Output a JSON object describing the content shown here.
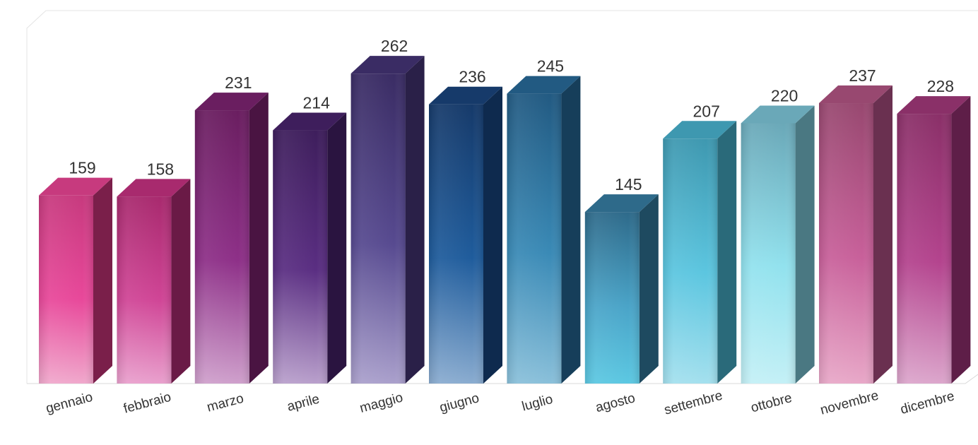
{
  "chart_data": {
    "type": "bar",
    "style": "3d",
    "categories": [
      "gennaio",
      "febbraio",
      "marzo",
      "aprile",
      "maggio",
      "giugno",
      "luglio",
      "agosto",
      "settembre",
      "ottobre",
      "novembre",
      "dicembre"
    ],
    "values": [
      159,
      158,
      231,
      214,
      262,
      236,
      245,
      145,
      207,
      220,
      237,
      228
    ],
    "value_labels": [
      "159",
      "158",
      "231",
      "214",
      "262",
      "236",
      "245",
      "145",
      "207",
      "220",
      "237",
      "228"
    ],
    "title": "",
    "xlabel": "",
    "ylabel": "",
    "ylim": [
      0,
      300
    ],
    "grid": false,
    "legend": "none",
    "bar_colors": [
      {
        "top": "#c73a7e",
        "mid": "#e8489a",
        "bottom": "#f0a8cc",
        "side": "#7a1f4a"
      },
      {
        "top": "#a82a6e",
        "mid": "#d04596",
        "bottom": "#e9a0cd",
        "side": "#6a1a46"
      },
      {
        "top": "#6a1e60",
        "mid": "#8e3088",
        "bottom": "#cfa0cc",
        "side": "#4a1442"
      },
      {
        "top": "#3e1e5c",
        "mid": "#5a2e82",
        "bottom": "#b9a0cc",
        "side": "#2a1440"
      },
      {
        "top": "#3a2c64",
        "mid": "#574a90",
        "bottom": "#aaa0cc",
        "side": "#2a2048"
      },
      {
        "top": "#163a6a",
        "mid": "#1f5c9c",
        "bottom": "#8aacd0",
        "side": "#0e2a4e"
      },
      {
        "top": "#225a82",
        "mid": "#3a8ab6",
        "bottom": "#8ac0da",
        "side": "#163e5a"
      },
      {
        "top": "#2e6a8a",
        "mid": "#4aa4c8",
        "bottom": "#5cc8e2",
        "side": "#1e4a60"
      },
      {
        "top": "#3e98b0",
        "mid": "#5cc6e0",
        "bottom": "#a4e0ee",
        "side": "#2a6a7a"
      },
      {
        "top": "#6aa8b8",
        "mid": "#92e2ee",
        "bottom": "#c4f0f6",
        "side": "#4a7882"
      },
      {
        "top": "#984870",
        "mid": "#c8609a",
        "bottom": "#e8a8c8",
        "side": "#6a3050"
      },
      {
        "top": "#8a3068",
        "mid": "#b4448e",
        "bottom": "#dca6cc",
        "side": "#5e1e48"
      }
    ]
  }
}
